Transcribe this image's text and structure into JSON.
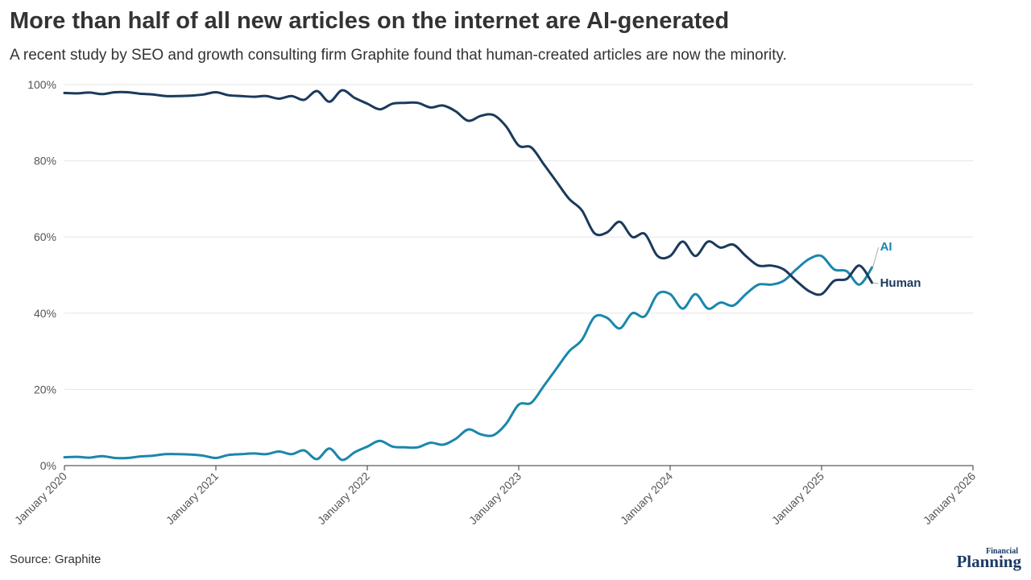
{
  "header": {
    "title": "More than half of all new articles on the internet are AI-generated",
    "subtitle": "A recent study by SEO and growth consulting firm Graphite found that human-created articles are now the minority."
  },
  "footer": {
    "source": "Source: Graphite",
    "logo_small": "Financial",
    "logo_big": "Planning"
  },
  "colors": {
    "human": "#1b3a5c",
    "ai": "#1a87ab",
    "grid": "#e6e6e6",
    "axis": "#555555"
  },
  "chart_data": {
    "type": "line",
    "title": "More than half of all new articles on the internet are AI-generated",
    "xlabel": "",
    "ylabel": "",
    "x_unit": "years",
    "xlim": [
      2020,
      2026
    ],
    "ylim": [
      0,
      100
    ],
    "y_ticks": [
      0,
      20,
      40,
      60,
      80,
      100
    ],
    "y_tick_labels": [
      "0%",
      "20%",
      "40%",
      "60%",
      "80%",
      "100%"
    ],
    "x_ticks": [
      2020,
      2021,
      2022,
      2023,
      2024,
      2025,
      2026
    ],
    "x_tick_labels": [
      "January 2020",
      "January 2021",
      "January 2022",
      "January 2023",
      "January 2024",
      "January 2025",
      "January 2026"
    ],
    "grid": true,
    "series": [
      {
        "name": "Human",
        "label": "Human",
        "x": [
          2020.0,
          2020.083,
          2020.167,
          2020.25,
          2020.333,
          2020.417,
          2020.5,
          2020.583,
          2020.667,
          2020.75,
          2020.833,
          2020.917,
          2021.0,
          2021.083,
          2021.167,
          2021.25,
          2021.333,
          2021.417,
          2021.5,
          2021.583,
          2021.667,
          2021.75,
          2021.833,
          2021.917,
          2022.0,
          2022.083,
          2022.167,
          2022.25,
          2022.333,
          2022.417,
          2022.5,
          2022.583,
          2022.667,
          2022.75,
          2022.833,
          2022.917,
          2023.0,
          2023.083,
          2023.167,
          2023.25,
          2023.333,
          2023.417,
          2023.5,
          2023.583,
          2023.667,
          2023.75,
          2023.833,
          2023.917,
          2024.0,
          2024.083,
          2024.167,
          2024.25,
          2024.333,
          2024.417,
          2024.5,
          2024.583,
          2024.667,
          2024.75,
          2024.833,
          2024.917,
          2025.0,
          2025.083,
          2025.167,
          2025.25,
          2025.333
        ],
        "values": [
          97.8,
          97.7,
          97.9,
          97.5,
          98.0,
          98.0,
          97.6,
          97.4,
          97.0,
          97.0,
          97.1,
          97.4,
          98.0,
          97.2,
          97.0,
          96.8,
          97.0,
          96.3,
          97.0,
          96.0,
          98.3,
          95.5,
          98.5,
          96.5,
          95.0,
          93.5,
          95.0,
          95.2,
          95.2,
          94.0,
          94.5,
          93.0,
          90.5,
          91.8,
          92.0,
          89.0,
          84.0,
          83.5,
          79.0,
          74.5,
          70.0,
          67.0,
          61.0,
          61.2,
          64.0,
          60.0,
          60.8,
          55.0,
          55.0,
          58.8,
          55.0,
          58.8,
          57.2,
          58.0,
          55.0,
          52.5,
          52.5,
          51.5,
          48.5,
          45.8,
          45.0,
          48.5,
          49.0,
          52.5,
          48.0
        ]
      },
      {
        "name": "AI",
        "label": "AI",
        "x": [
          2020.0,
          2020.083,
          2020.167,
          2020.25,
          2020.333,
          2020.417,
          2020.5,
          2020.583,
          2020.667,
          2020.75,
          2020.833,
          2020.917,
          2021.0,
          2021.083,
          2021.167,
          2021.25,
          2021.333,
          2021.417,
          2021.5,
          2021.583,
          2021.667,
          2021.75,
          2021.833,
          2021.917,
          2022.0,
          2022.083,
          2022.167,
          2022.25,
          2022.333,
          2022.417,
          2022.5,
          2022.583,
          2022.667,
          2022.75,
          2022.833,
          2022.917,
          2023.0,
          2023.083,
          2023.167,
          2023.25,
          2023.333,
          2023.417,
          2023.5,
          2023.583,
          2023.667,
          2023.75,
          2023.833,
          2023.917,
          2024.0,
          2024.083,
          2024.167,
          2024.25,
          2024.333,
          2024.417,
          2024.5,
          2024.583,
          2024.667,
          2024.75,
          2024.833,
          2024.917,
          2025.0,
          2025.083,
          2025.167,
          2025.25,
          2025.333
        ],
        "values": [
          2.2,
          2.3,
          2.1,
          2.5,
          2.0,
          2.0,
          2.4,
          2.6,
          3.0,
          3.0,
          2.9,
          2.6,
          2.0,
          2.8,
          3.0,
          3.2,
          3.0,
          3.7,
          3.0,
          4.0,
          1.7,
          4.5,
          1.5,
          3.5,
          5.0,
          6.5,
          5.0,
          4.8,
          4.8,
          6.0,
          5.5,
          7.0,
          9.5,
          8.2,
          8.0,
          11.0,
          16.0,
          16.5,
          21.0,
          25.5,
          30.0,
          33.0,
          39.0,
          38.8,
          36.0,
          40.0,
          39.2,
          45.0,
          45.0,
          41.2,
          45.0,
          41.2,
          42.8,
          42.0,
          45.0,
          47.5,
          47.5,
          48.5,
          51.5,
          54.2,
          55.0,
          51.5,
          51.0,
          47.5,
          52.0
        ]
      }
    ]
  }
}
